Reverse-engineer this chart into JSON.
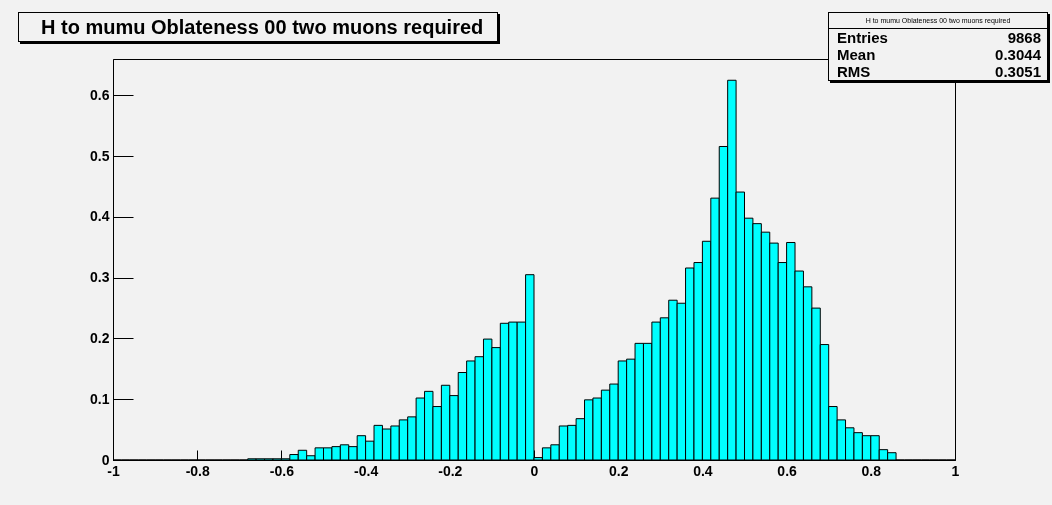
{
  "chart_data": {
    "type": "histogram",
    "title": "H to mumu Oblateness 00 two muons required",
    "bins": [
      -1,
      -0.98,
      -0.96,
      -0.94,
      -0.92,
      -0.9,
      -0.88,
      -0.86,
      -0.84,
      -0.82,
      -0.8,
      -0.78,
      -0.76,
      -0.74,
      -0.72,
      -0.7,
      -0.68,
      -0.66,
      -0.64,
      -0.62,
      -0.6,
      -0.58,
      -0.56,
      -0.54,
      -0.52,
      -0.5,
      -0.48,
      -0.46,
      -0.44,
      -0.42,
      -0.4,
      -0.38,
      -0.36,
      -0.34,
      -0.32,
      -0.3,
      -0.28,
      -0.26,
      -0.24,
      -0.22,
      -0.2,
      -0.18,
      -0.16,
      -0.14,
      -0.12,
      -0.1,
      -0.08,
      -0.06,
      -0.04,
      -0.02,
      0,
      0.02,
      0.04,
      0.06,
      0.08,
      0.1,
      0.12,
      0.14,
      0.16,
      0.18,
      0.2,
      0.22,
      0.24,
      0.26,
      0.28,
      0.3,
      0.32,
      0.34,
      0.36,
      0.38,
      0.4,
      0.42,
      0.44,
      0.46,
      0.48,
      0.5,
      0.52,
      0.54,
      0.56,
      0.58,
      0.6,
      0.62,
      0.64,
      0.66,
      0.68,
      0.7,
      0.72,
      0.74,
      0.76,
      0.78,
      0.8,
      0.82,
      0.84,
      0.86,
      0.88,
      0.9,
      0.92,
      0.94,
      0.96,
      0.98,
      1
    ],
    "values": [
      0,
      0,
      0,
      0,
      0,
      0,
      0,
      0,
      0,
      0,
      0,
      0,
      0,
      0,
      0,
      0,
      0.002,
      0.002,
      0.002,
      0.002,
      0.002,
      0.009,
      0.016,
      0.007,
      0.02,
      0.02,
      0.022,
      0.025,
      0.022,
      0.04,
      0.031,
      0.057,
      0.051,
      0.056,
      0.066,
      0.071,
      0.102,
      0.113,
      0.088,
      0.123,
      0.106,
      0.144,
      0.163,
      0.17,
      0.199,
      0.185,
      0.225,
      0.227,
      0.227,
      0.305,
      0.004,
      0.02,
      0.025,
      0.056,
      0.057,
      0.068,
      0.099,
      0.102,
      0.115,
      0.125,
      0.163,
      0.166,
      0.192,
      0.192,
      0.227,
      0.234,
      0.263,
      0.258,
      0.316,
      0.325,
      0.36,
      0.431,
      0.516,
      0.625,
      0.441,
      0.398,
      0.389,
      0.375,
      0.357,
      0.325,
      0.358,
      0.311,
      0.285,
      0.25,
      0.19,
      0.088,
      0.066,
      0.053,
      0.045,
      0.04,
      0.04,
      0.017,
      0.012,
      0,
      0,
      0,
      0,
      0,
      0,
      0
    ],
    "color": "#00ffff",
    "xlim": [
      -1,
      1
    ],
    "xticks": [
      -1,
      -0.8,
      -0.6,
      -0.4,
      -0.2,
      0,
      0.2,
      0.4,
      0.6,
      0.8,
      1
    ],
    "ylim": [
      0,
      0.66
    ],
    "yticks": [
      0,
      0.1,
      0.2,
      0.3,
      0.4,
      0.5,
      0.6
    ],
    "annotations": [
      "H to mumu Oblateness 00 two muons required",
      "Entries",
      "9868",
      "Mean",
      "0.3044",
      "RMS",
      "0.3051"
    ]
  }
}
